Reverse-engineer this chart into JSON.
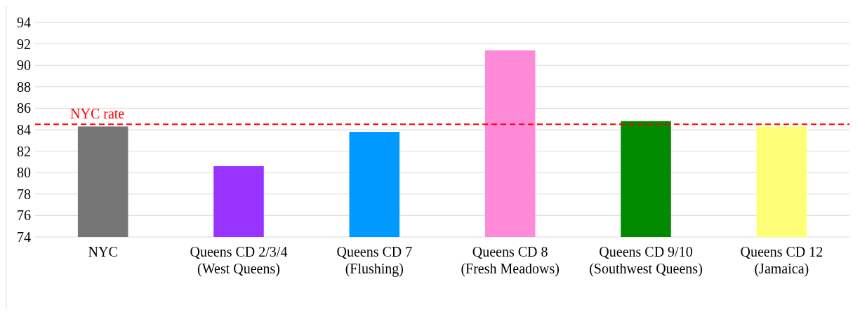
{
  "chart_data": {
    "type": "bar",
    "categories": [
      "NYC",
      "Queens CD 2/3/4 (West Queens)",
      "Queens CD 7 (Flushing)",
      "Queens CD 8 (Fresh Meadows)",
      "Queens CD 9/10 (Southwest Queens)",
      "Queens CD 12 (Jamaica)"
    ],
    "values": [
      84.3,
      80.6,
      83.8,
      91.4,
      84.8,
      84.3
    ],
    "colors": [
      "#767676",
      "#9933ff",
      "#0099ff",
      "#ff8ad8",
      "#008a00",
      "#ffff77"
    ],
    "ylim": [
      74,
      94
    ],
    "yticks": [
      74,
      76,
      78,
      80,
      82,
      84,
      86,
      88,
      90,
      92,
      94
    ],
    "grid": "y",
    "ref_lines": [
      {
        "axis": "y",
        "value": 84.5,
        "label": "NYC rate",
        "color": "#ff0000",
        "line_style": "dashed"
      }
    ]
  }
}
